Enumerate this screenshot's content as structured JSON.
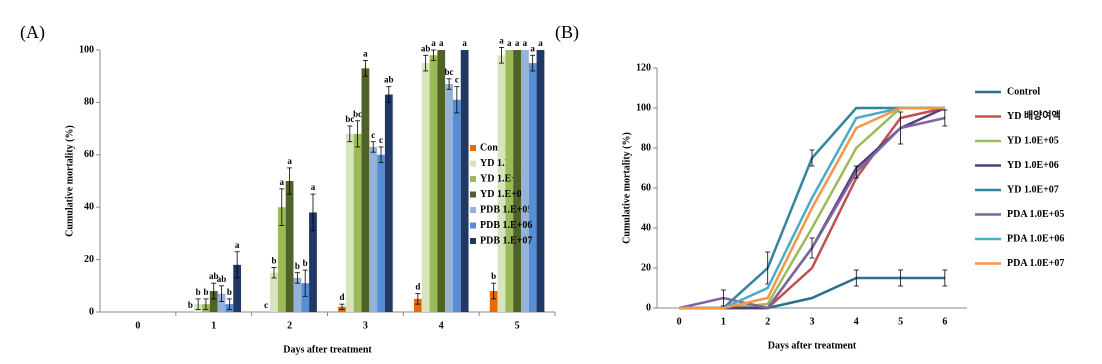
{
  "chart_data": [
    {
      "type": "bar",
      "label": "(A)",
      "x_label": "Days after treatment",
      "y_label": "Cumulative mortality (%)",
      "categories": [
        "0",
        "1",
        "2",
        "3",
        "4",
        "5"
      ],
      "ylim": [
        0,
        100
      ],
      "yticks": [
        0,
        20,
        40,
        60,
        80,
        100
      ],
      "series": [
        {
          "name": "Control",
          "color": "#e46c0a",
          "values": [
            0,
            0,
            0,
            2,
            5,
            8
          ],
          "errors": [
            0,
            0,
            0,
            1,
            2,
            3
          ],
          "letters": [
            null,
            "b",
            "c",
            "d",
            "d",
            "b"
          ]
        },
        {
          "name": "YD 1.E+05",
          "color": "#d7e4bd",
          "values": [
            0,
            3,
            15,
            68,
            95,
            98
          ],
          "errors": [
            0,
            2,
            2,
            3,
            3,
            3
          ],
          "letters": [
            null,
            "b",
            "b",
            "bc",
            "ab",
            "a"
          ]
        },
        {
          "name": "YD 1.E+06",
          "color": "#9bbb59",
          "values": [
            0,
            3,
            40,
            68,
            98,
            100
          ],
          "errors": [
            0,
            2,
            7,
            5,
            2,
            0
          ],
          "letters": [
            null,
            "b",
            "a",
            "bc",
            "a",
            "a"
          ]
        },
        {
          "name": "YD 1.E+07",
          "color": "#4f6228",
          "values": [
            0,
            8,
            50,
            93,
            100,
            100
          ],
          "errors": [
            0,
            3,
            5,
            3,
            0,
            0
          ],
          "letters": [
            null,
            "ab",
            "a",
            "a",
            "a",
            "a"
          ]
        },
        {
          "name": "PDB 1.E+05",
          "color": "#95b3d7",
          "values": [
            0,
            7,
            13,
            63,
            87,
            100
          ],
          "errors": [
            0,
            3,
            2,
            2,
            2,
            0
          ],
          "letters": [
            null,
            "ab",
            "b",
            "c",
            "bc",
            "a"
          ]
        },
        {
          "name": "PDB 1.E+06",
          "color": "#558ed5",
          "values": [
            0,
            3,
            11,
            60,
            81,
            95
          ],
          "errors": [
            0,
            2,
            5,
            3,
            5,
            3
          ],
          "letters": [
            null,
            "b",
            "b",
            "c",
            "c",
            "a"
          ]
        },
        {
          "name": "PDB 1.E+07",
          "color": "#1f3864",
          "values": [
            0,
            18,
            38,
            83,
            100,
            100
          ],
          "errors": [
            0,
            5,
            7,
            3,
            0,
            0
          ],
          "letters": [
            null,
            "a",
            "a",
            "ab",
            "a",
            "a"
          ]
        }
      ]
    },
    {
      "type": "line",
      "label": "(B)",
      "x_label": "Days after treatment",
      "y_label": "Cumulative mortality (%)",
      "categories": [
        "0",
        "1",
        "2",
        "3",
        "4",
        "5",
        "6"
      ],
      "ylim": [
        0,
        120
      ],
      "yticks": [
        0,
        20,
        40,
        60,
        80,
        100,
        120
      ],
      "series": [
        {
          "name": "Control",
          "color": "#2e6e8e",
          "values": [
            0,
            0,
            0,
            5,
            15,
            15,
            15
          ],
          "errors": [
            0,
            0,
            0,
            0,
            4,
            4,
            4
          ]
        },
        {
          "name": "YD 배양여액",
          "color": "#c0504d",
          "values": [
            0,
            0,
            0,
            20,
            65,
            95,
            100
          ]
        },
        {
          "name": "YD 1.0E+05",
          "color": "#9bbb59",
          "values": [
            0,
            0,
            2,
            40,
            80,
            100,
            100
          ]
        },
        {
          "name": "YD 1.0E+06",
          "color": "#4f3f7a",
          "values": [
            0,
            0,
            0,
            30,
            70,
            90,
            100
          ]
        },
        {
          "name": "YD 1.0E+07",
          "color": "#31859c",
          "values": [
            0,
            0,
            20,
            75,
            100,
            100,
            100
          ],
          "errors": [
            0,
            0,
            8,
            4,
            0,
            0,
            0
          ]
        },
        {
          "name": "PDA 1.0E+05",
          "color": "#8064a2",
          "values": [
            0,
            5,
            0,
            30,
            68,
            90,
            95
          ],
          "errors": [
            0,
            4,
            0,
            5,
            3,
            8,
            4
          ]
        },
        {
          "name": "PDA 1.0E+06",
          "color": "#4bacc6",
          "values": [
            0,
            0,
            10,
            55,
            95,
            100,
            100
          ]
        },
        {
          "name": "PDA 1.0E+07",
          "color": "#f79646",
          "values": [
            0,
            0,
            5,
            50,
            90,
            100,
            100
          ]
        }
      ]
    }
  ]
}
